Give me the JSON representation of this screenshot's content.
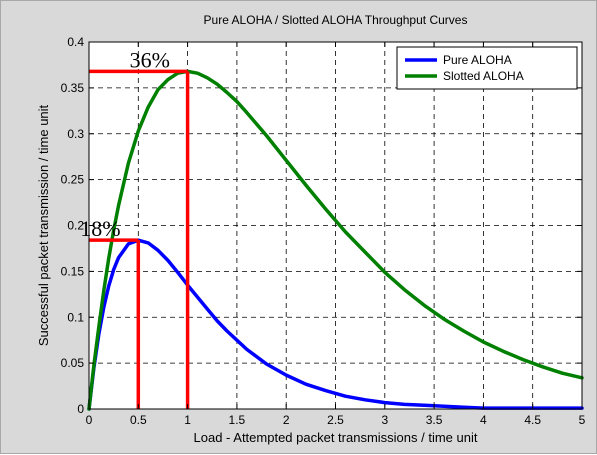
{
  "chart_data": {
    "type": "line",
    "title": "Pure ALOHA / Slotted ALOHA Throughput Curves",
    "xlabel": "Load - Attempted packet transmissions / time unit",
    "ylabel": "Successful packet transmission / time unit",
    "xlim": [
      0,
      5
    ],
    "ylim": [
      0,
      0.4
    ],
    "xticks": [
      0,
      0.5,
      1,
      1.5,
      2,
      2.5,
      3,
      3.5,
      4,
      4.5,
      5
    ],
    "xtick_labels": [
      "0",
      "0.5",
      "1",
      "1.5",
      "2",
      "2.5",
      "3",
      "3.5",
      "4",
      "4.5",
      "5"
    ],
    "yticks": [
      0,
      0.05,
      0.1,
      0.15,
      0.2,
      0.25,
      0.3,
      0.35,
      0.4
    ],
    "ytick_labels": [
      "0",
      "0.05",
      "0.1",
      "0.15",
      "0.2",
      "0.25",
      "0.3",
      "0.35",
      "0.4"
    ],
    "grid": true,
    "legend_position": "top-right",
    "x": [
      0,
      0.05,
      0.1,
      0.15,
      0.2,
      0.25,
      0.3,
      0.4,
      0.5,
      0.6,
      0.7,
      0.8,
      0.9,
      1.0,
      1.1,
      1.2,
      1.3,
      1.4,
      1.5,
      1.6,
      1.8,
      2.0,
      2.2,
      2.4,
      2.6,
      2.8,
      3.0,
      3.2,
      3.4,
      3.6,
      3.8,
      4.0,
      4.2,
      4.4,
      4.6,
      4.8,
      5.0
    ],
    "series": [
      {
        "name": "Pure ALOHA",
        "color": "#0000ff",
        "values": [
          0,
          0.045,
          0.082,
          0.111,
          0.134,
          0.152,
          0.165,
          0.18,
          0.184,
          0.181,
          0.173,
          0.162,
          0.149,
          0.135,
          0.122,
          0.109,
          0.096,
          0.085,
          0.075,
          0.065,
          0.049,
          0.037,
          0.027,
          0.02,
          0.014,
          0.01,
          0.007,
          0.005,
          0.004,
          0.003,
          0.002,
          0.001,
          0.001,
          0.001,
          0.001,
          0.001,
          0.001
        ]
      },
      {
        "name": "Slotted ALOHA",
        "color": "#008000",
        "values": [
          0,
          0.048,
          0.09,
          0.129,
          0.164,
          0.195,
          0.222,
          0.268,
          0.303,
          0.329,
          0.348,
          0.359,
          0.366,
          0.368,
          0.366,
          0.361,
          0.354,
          0.345,
          0.335,
          0.323,
          0.298,
          0.271,
          0.244,
          0.218,
          0.193,
          0.171,
          0.149,
          0.13,
          0.113,
          0.098,
          0.085,
          0.073,
          0.063,
          0.054,
          0.046,
          0.039,
          0.034
        ]
      }
    ],
    "annotations": [
      {
        "text": "36%",
        "x": 1.0,
        "y": 0.368,
        "color": "#ff0000"
      },
      {
        "text": "18%",
        "x": 0.5,
        "y": 0.184,
        "color": "#ff0000"
      }
    ]
  }
}
